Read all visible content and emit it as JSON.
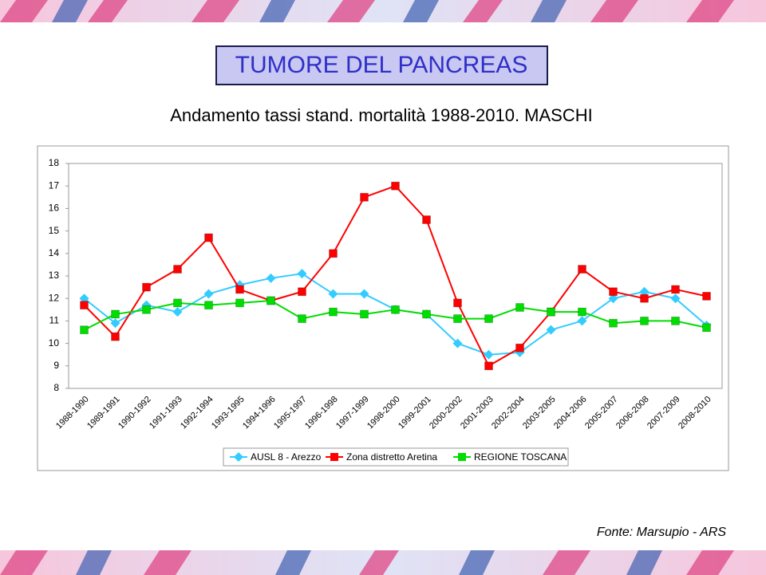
{
  "slide": {
    "title": "TUMORE DEL PANCREAS",
    "subtitle": "Andamento tassi stand. mortalità 1988-2010. MASCHI",
    "source": "Fonte: Marsupio - ARS"
  },
  "chart_data": {
    "type": "line",
    "categories": [
      "1988-1990",
      "1989-1991",
      "1990-1992",
      "1991-1993",
      "1992-1994",
      "1993-1995",
      "1994-1996",
      "1995-1997",
      "1996-1998",
      "1997-1999",
      "1998-2000",
      "1999-2001",
      "2000-2002",
      "2001-2003",
      "2002-2004",
      "2003-2005",
      "2004-2006",
      "2005-2007",
      "2006-2008",
      "2007-2009",
      "2008-2010"
    ],
    "series": [
      {
        "name": "AUSL 8 - Arezzo",
        "color": "#33ccff",
        "marker": "diamond",
        "values": [
          12.0,
          10.9,
          11.7,
          11.4,
          12.2,
          12.6,
          12.9,
          13.1,
          12.2,
          12.2,
          11.5,
          11.3,
          10.0,
          9.5,
          9.6,
          10.6,
          11.0,
          12.0,
          12.3,
          12.0,
          10.8
        ]
      },
      {
        "name": "Zona distretto Aretina",
        "color": "#ff0000",
        "marker": "square",
        "values": [
          11.7,
          10.3,
          12.5,
          13.3,
          14.7,
          12.4,
          11.9,
          12.3,
          14.0,
          16.5,
          17.0,
          15.5,
          11.8,
          9.0,
          9.8,
          11.4,
          13.3,
          12.3,
          12.0,
          12.4,
          12.1
        ]
      },
      {
        "name": "REGIONE TOSCANA",
        "color": "#00dd00",
        "marker": "square",
        "values": [
          10.6,
          11.3,
          11.5,
          11.8,
          11.7,
          11.8,
          11.9,
          11.1,
          11.4,
          11.3,
          11.5,
          11.3,
          11.1,
          11.1,
          11.6,
          11.4,
          11.4,
          10.9,
          11.0,
          11.0,
          10.7
        ]
      }
    ],
    "ylim": [
      8,
      18
    ],
    "yticks": [
      8,
      9,
      10,
      11,
      12,
      13,
      14,
      15,
      16,
      17,
      18
    ],
    "grid": false,
    "legend": "bottom"
  }
}
